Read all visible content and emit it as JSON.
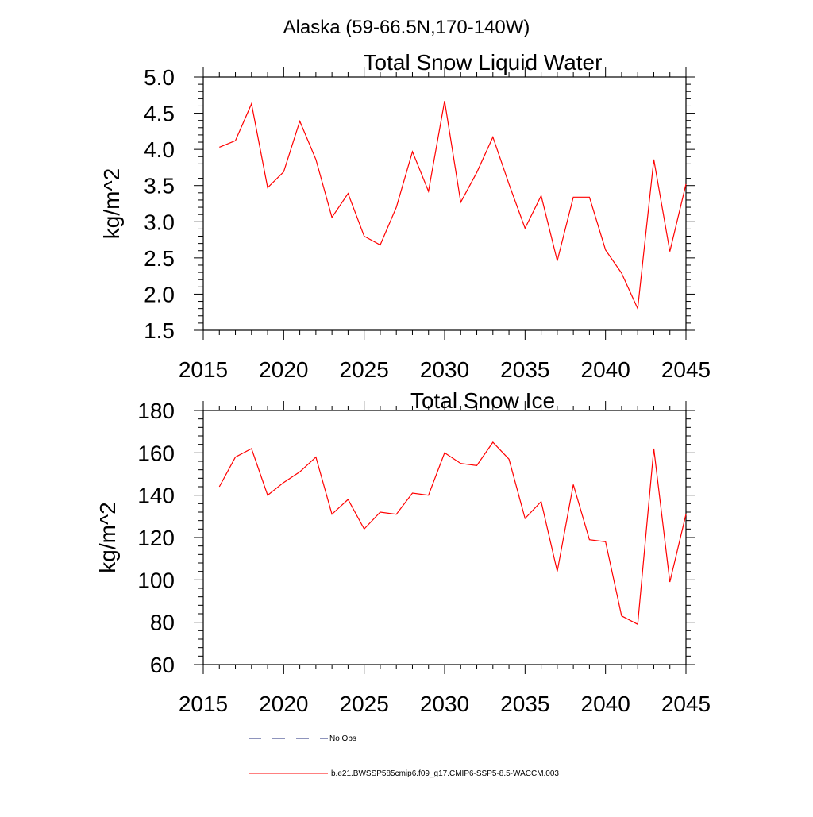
{
  "figure_title": "Alaska (59-66.5N,170-140W)",
  "legend": {
    "obs_label": "No Obs",
    "model_label": "b.e21.BWSSP585cmip6.f09_g17.CMIP6-SSP5-8.5-WACCM.003",
    "model_color": "#ff0000",
    "obs_color": "#1e2a7a"
  },
  "chart_data": [
    {
      "type": "line",
      "title": "Total Snow Liquid Water",
      "xlabel": "",
      "ylabel": "kg/m^2",
      "xlim": [
        2015,
        2045
      ],
      "ylim": [
        1.5,
        5.0
      ],
      "xticks": [
        "2015",
        "2020",
        "2025",
        "2030",
        "2035",
        "2040",
        "2045"
      ],
      "yticks": [
        "1.5",
        "2.0",
        "2.5",
        "3.0",
        "3.5",
        "4.0",
        "4.5",
        "5.0"
      ],
      "grid": false,
      "series": [
        {
          "color": "#ff0000",
          "x": [
            2016,
            2017,
            2018,
            2019,
            2020,
            2021,
            2022,
            2023,
            2024,
            2025,
            2026,
            2027,
            2028,
            2029,
            2030,
            2031,
            2032,
            2033,
            2034,
            2035,
            2036,
            2037,
            2038,
            2039,
            2040,
            2041,
            2042,
            2043,
            2044,
            2045
          ],
          "values": [
            4.03,
            4.12,
            4.63,
            3.47,
            3.69,
            4.39,
            3.86,
            3.06,
            3.39,
            2.8,
            2.68,
            3.2,
            3.97,
            3.42,
            4.67,
            3.27,
            3.68,
            4.17,
            3.52,
            2.91,
            3.36,
            2.46,
            3.34,
            3.34,
            2.61,
            2.29,
            1.8,
            3.86,
            2.59,
            3.52
          ]
        }
      ]
    },
    {
      "type": "line",
      "title": "Total Snow Ice",
      "xlabel": "",
      "ylabel": "kg/m^2",
      "xlim": [
        2015,
        2045
      ],
      "ylim": [
        60,
        180
      ],
      "xticks": [
        "2015",
        "2020",
        "2025",
        "2030",
        "2035",
        "2040",
        "2045"
      ],
      "yticks": [
        "60",
        "80",
        "100",
        "120",
        "140",
        "160",
        "180"
      ],
      "grid": false,
      "series": [
        {
          "color": "#ff0000",
          "x": [
            2016,
            2017,
            2018,
            2019,
            2020,
            2021,
            2022,
            2023,
            2024,
            2025,
            2026,
            2027,
            2028,
            2029,
            2030,
            2031,
            2032,
            2033,
            2034,
            2035,
            2036,
            2037,
            2038,
            2039,
            2040,
            2041,
            2042,
            2043,
            2044,
            2045
          ],
          "values": [
            144,
            158,
            162,
            140,
            146,
            151,
            158,
            131,
            138,
            124,
            132,
            131,
            141,
            140,
            160,
            155,
            154,
            165,
            157,
            129,
            137,
            104,
            145,
            119,
            118,
            83,
            79,
            162,
            99,
            131
          ]
        }
      ]
    }
  ]
}
